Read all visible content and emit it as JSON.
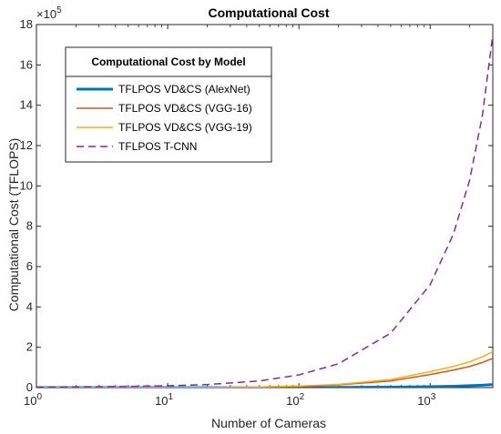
{
  "chart_data": {
    "type": "line",
    "title": "Computational Cost",
    "xlabel": "Number of Cameras",
    "ylabel": "Computational Cost (TFLOPS)",
    "x_scale": "log",
    "xlim": [
      1,
      3000
    ],
    "ylim": [
      0,
      18
    ],
    "y_exponent_label": "×10",
    "y_exponent": "5",
    "x_ticks": [
      {
        "value": 1,
        "base": "10",
        "exp": "0"
      },
      {
        "value": 10,
        "base": "10",
        "exp": "1"
      },
      {
        "value": 100,
        "base": "10",
        "exp": "2"
      },
      {
        "value": 1000,
        "base": "10",
        "exp": "3"
      }
    ],
    "y_ticks": [
      0,
      2,
      4,
      6,
      8,
      10,
      12,
      14,
      16,
      18
    ],
    "legend": {
      "title": "Computational Cost by Model",
      "placement": "top-left"
    },
    "x": [
      1,
      2,
      5,
      10,
      20,
      50,
      100,
      200,
      500,
      1000,
      1500,
      2000,
      2500,
      3000
    ],
    "series": [
      {
        "name": "TFLPOS VD&CS (AlexNet)",
        "color": "#0072BD",
        "dash": "solid",
        "width": 3,
        "values": [
          3e-05,
          7e-05,
          0.0002,
          0.0004,
          0.0009,
          0.0023,
          0.0046,
          0.0093,
          0.023,
          0.046,
          0.07,
          0.095,
          0.12,
          0.15
        ]
      },
      {
        "name": "TFLPOS VD&CS (VGG-16)",
        "color": "#D95319",
        "dash": "solid",
        "width": 1.5,
        "values": [
          0.0005,
          0.0011,
          0.003,
          0.006,
          0.012,
          0.03,
          0.065,
          0.135,
          0.33,
          0.65,
          0.87,
          1.05,
          1.25,
          1.45
        ]
      },
      {
        "name": "TFLPOS VD&CS (VGG-19)",
        "color": "#EDB120",
        "dash": "solid",
        "width": 1.5,
        "values": [
          0.0006,
          0.0013,
          0.0035,
          0.007,
          0.014,
          0.036,
          0.078,
          0.16,
          0.4,
          0.79,
          1.05,
          1.28,
          1.53,
          1.78
        ]
      },
      {
        "name": "TFLPOS T-CNN",
        "color": "#7E2F8E",
        "dash": "dashed",
        "width": 1.5,
        "values": [
          0.03,
          0.04,
          0.06,
          0.09,
          0.15,
          0.33,
          0.63,
          1.18,
          2.7,
          5.1,
          7.6,
          10.3,
          13.5,
          17.5
        ]
      }
    ]
  }
}
